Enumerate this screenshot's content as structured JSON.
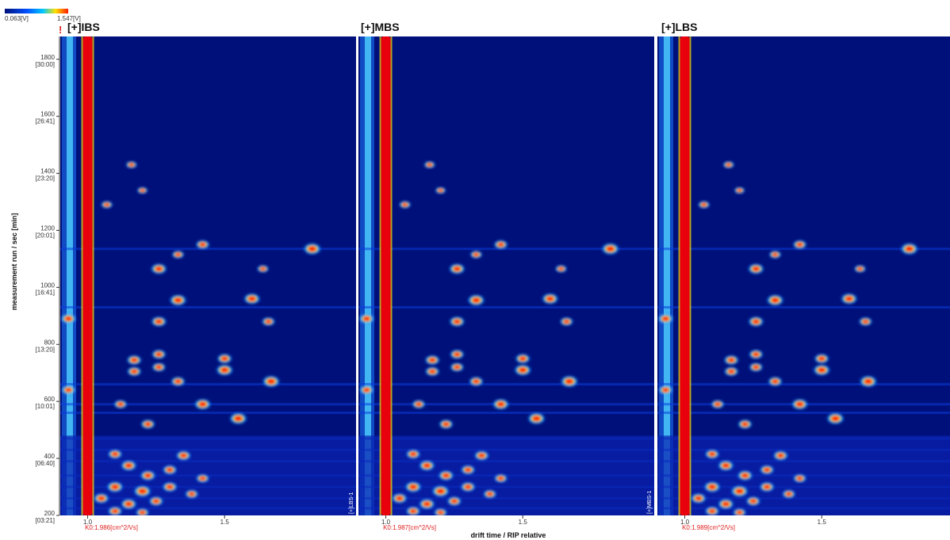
{
  "colors": {
    "background": "#00107a",
    "rip": "#e8000c",
    "hot": "#ff1a00",
    "warm": "#ffe000",
    "cool": "#00c8ff"
  },
  "colorbar": {
    "min_label": "0.063[V]",
    "max_label": "1.547[V]"
  },
  "warning_mark": "!",
  "chart_data": {
    "type": "heatmap",
    "xlabel": "drift time / RIP relative",
    "ylabel": "measurement run / sec [min]",
    "xlim": [
      0.9,
      1.98
    ],
    "ylim": [
      200,
      1880
    ],
    "x_ticks": [
      {
        "value": 1.0,
        "label": "1.0"
      },
      {
        "value": 1.5,
        "label": "1.5"
      }
    ],
    "y_ticks": [
      {
        "value": 200,
        "label": "200",
        "sub": "[03:21]"
      },
      {
        "value": 400,
        "label": "400",
        "sub": "[06:40]"
      },
      {
        "value": 600,
        "label": "600",
        "sub": "[10:01]"
      },
      {
        "value": 800,
        "label": "800",
        "sub": "[13:20]"
      },
      {
        "value": 1000,
        "label": "1000",
        "sub": "[16:41]"
      },
      {
        "value": 1200,
        "label": "1200",
        "sub": "[20:01]"
      },
      {
        "value": 1400,
        "label": "1400",
        "sub": "[23:20]"
      },
      {
        "value": 1600,
        "label": "1600",
        "sub": "[26:41]"
      },
      {
        "value": 1800,
        "label": "1800",
        "sub": "[30:00]"
      }
    ],
    "panels": [
      {
        "title": "[+]IBS",
        "k0": "K0:1.986[cm^2/Vs]",
        "side_tag": "[+]LBS-1"
      },
      {
        "title": "[+]MBS",
        "k0": "K0:1.987[cm^2/Vs]",
        "side_tag": "[+]MBS-1"
      },
      {
        "title": "[+]LBS",
        "k0": "K0:1.989[cm^2/Vs]",
        "side_tag": ""
      }
    ],
    "peaks": [
      {
        "x": 0.93,
        "y": 890,
        "i": 0.8
      },
      {
        "x": 0.93,
        "y": 640,
        "i": 0.7
      },
      {
        "x": 1.07,
        "y": 1290,
        "i": 0.45
      },
      {
        "x": 1.16,
        "y": 1430,
        "i": 0.4
      },
      {
        "x": 1.2,
        "y": 1340,
        "i": 0.35
      },
      {
        "x": 1.26,
        "y": 1065,
        "i": 0.85
      },
      {
        "x": 1.26,
        "y": 880,
        "i": 0.8
      },
      {
        "x": 1.26,
        "y": 765,
        "i": 0.7
      },
      {
        "x": 1.26,
        "y": 720,
        "i": 0.65
      },
      {
        "x": 1.33,
        "y": 955,
        "i": 0.95
      },
      {
        "x": 1.33,
        "y": 1115,
        "i": 0.5
      },
      {
        "x": 1.33,
        "y": 670,
        "i": 0.7
      },
      {
        "x": 1.42,
        "y": 1150,
        "i": 0.65
      },
      {
        "x": 1.42,
        "y": 590,
        "i": 0.9
      },
      {
        "x": 1.5,
        "y": 750,
        "i": 0.75
      },
      {
        "x": 1.5,
        "y": 710,
        "i": 0.95
      },
      {
        "x": 1.6,
        "y": 960,
        "i": 0.9
      },
      {
        "x": 1.64,
        "y": 1065,
        "i": 0.45
      },
      {
        "x": 1.66,
        "y": 880,
        "i": 0.6
      },
      {
        "x": 1.67,
        "y": 670,
        "i": 1.0
      },
      {
        "x": 1.82,
        "y": 1135,
        "i": 1.0
      },
      {
        "x": 1.55,
        "y": 540,
        "i": 1.0
      },
      {
        "x": 1.17,
        "y": 745,
        "i": 0.75
      },
      {
        "x": 1.17,
        "y": 705,
        "i": 0.7
      },
      {
        "x": 1.12,
        "y": 590,
        "i": 0.6
      },
      {
        "x": 1.22,
        "y": 520,
        "i": 0.7
      },
      {
        "x": 1.1,
        "y": 415,
        "i": 0.7
      },
      {
        "x": 1.15,
        "y": 375,
        "i": 0.85
      },
      {
        "x": 1.22,
        "y": 340,
        "i": 0.8
      },
      {
        "x": 1.3,
        "y": 360,
        "i": 0.7
      },
      {
        "x": 1.35,
        "y": 410,
        "i": 0.75
      },
      {
        "x": 1.42,
        "y": 330,
        "i": 0.6
      },
      {
        "x": 1.1,
        "y": 300,
        "i": 0.9
      },
      {
        "x": 1.2,
        "y": 285,
        "i": 1.0
      },
      {
        "x": 1.3,
        "y": 300,
        "i": 0.75
      },
      {
        "x": 1.05,
        "y": 260,
        "i": 0.8
      },
      {
        "x": 1.15,
        "y": 240,
        "i": 0.85
      },
      {
        "x": 1.25,
        "y": 250,
        "i": 0.7
      },
      {
        "x": 1.38,
        "y": 275,
        "i": 0.6
      },
      {
        "x": 1.1,
        "y": 215,
        "i": 0.7
      },
      {
        "x": 1.2,
        "y": 210,
        "i": 0.6
      }
    ]
  }
}
